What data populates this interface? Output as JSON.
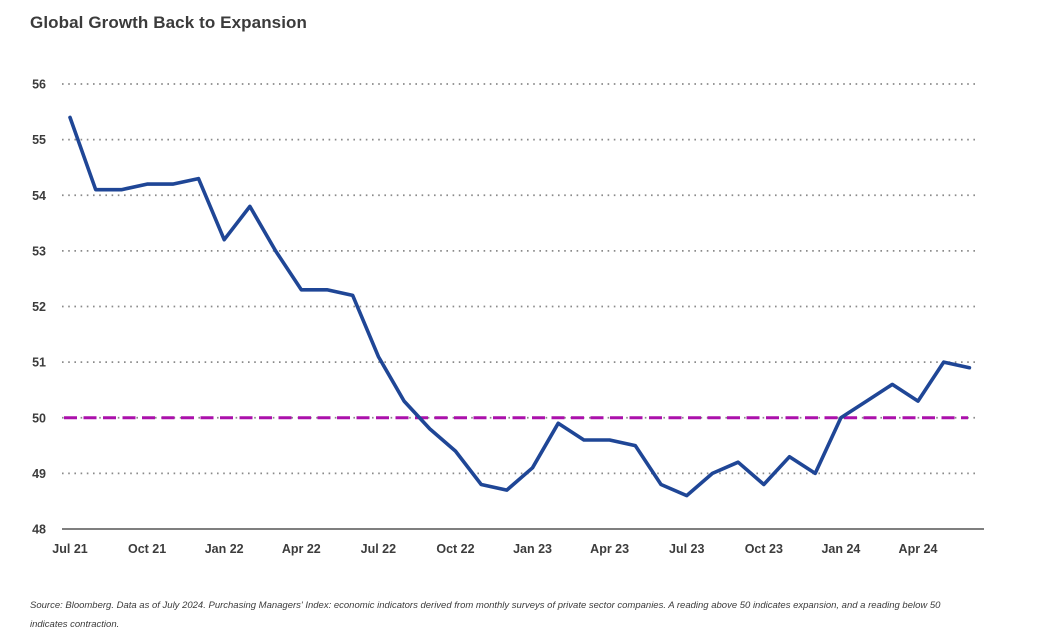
{
  "page": {
    "title": "Global Growth Back to Expansion",
    "source_note": "Source: Bloomberg. Data as of July 2024. Purchasing Managers' Index: economic indicators derived from monthly surveys of private sector companies. A reading above 50 indicates expansion, and a reading below 50 indicates contraction."
  },
  "chart_data": {
    "type": "line",
    "title": "Global Growth Back to Expansion",
    "x": [
      "Jul 21",
      "Aug 21",
      "Sep 21",
      "Oct 21",
      "Nov 21",
      "Dec 21",
      "Jan 22",
      "Feb 22",
      "Mar 22",
      "Apr 22",
      "May 22",
      "Jun 22",
      "Jul 22",
      "Aug 22",
      "Sep 22",
      "Oct 22",
      "Nov 22",
      "Dec 22",
      "Jan 23",
      "Feb 23",
      "Mar 23",
      "Apr 23",
      "May 23",
      "Jun 23",
      "Jul 23",
      "Aug 23",
      "Sep 23",
      "Oct 23",
      "Nov 23",
      "Dec 23",
      "Jan 24",
      "Feb 24",
      "Mar 24",
      "Apr 24",
      "May 24",
      "Jun 24"
    ],
    "values": [
      55.4,
      54.1,
      54.1,
      54.2,
      54.2,
      54.3,
      53.2,
      53.8,
      53.0,
      52.3,
      52.3,
      52.2,
      51.1,
      50.3,
      49.8,
      49.4,
      48.8,
      48.7,
      49.1,
      49.9,
      49.6,
      49.6,
      49.5,
      48.8,
      48.6,
      49.0,
      49.2,
      48.8,
      49.3,
      49.0,
      50.0,
      50.3,
      50.6,
      50.3,
      51.0,
      50.9
    ],
    "series_name": "Global Purchasing Managers' Index",
    "x_tick_labels": [
      "Jul 21",
      "Oct 21",
      "Jan 22",
      "Apr 22",
      "Jul 22",
      "Oct 22",
      "Jan 23",
      "Apr 23",
      "Jul 23",
      "Oct 23",
      "Jan 24",
      "Apr 24"
    ],
    "x_tick_every_months": 3,
    "y_ticks": [
      48,
      49,
      50,
      51,
      52,
      53,
      54,
      55,
      56
    ],
    "ylim": [
      48,
      56
    ],
    "reference_line": {
      "value": 50,
      "meaning": "expansion threshold"
    },
    "grid": "horizontal dotted",
    "legend_position": "none",
    "colors": {
      "series_line": "#1F4696",
      "reference_line": "#AB10AB",
      "gridline_dots": "#8a8a8a",
      "axis_line": "#555555",
      "tick_label": "#3c3c3c",
      "title_text": "#3b3b3b"
    }
  }
}
